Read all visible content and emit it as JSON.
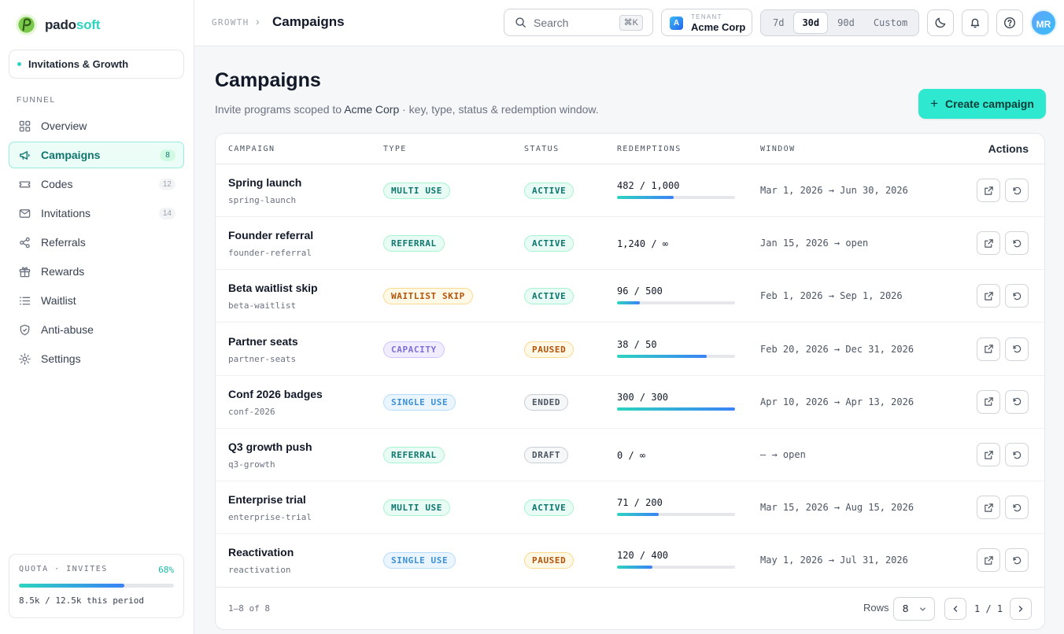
{
  "brand": {
    "name_part1": "pado",
    "name_part2": "soft"
  },
  "workspace": {
    "name": "Invitations & Growth"
  },
  "sidebar": {
    "section_label": "FUNNEL",
    "items": [
      {
        "label": "Overview",
        "icon": "grid-icon",
        "count": ""
      },
      {
        "label": "Campaigns",
        "icon": "megaphone-icon",
        "count": "8",
        "active": true
      },
      {
        "label": "Codes",
        "icon": "ticket-icon",
        "count": "12"
      },
      {
        "label": "Invitations",
        "icon": "mail-icon",
        "count": "14"
      },
      {
        "label": "Referrals",
        "icon": "share-icon",
        "count": ""
      },
      {
        "label": "Rewards",
        "icon": "gift-icon",
        "count": ""
      },
      {
        "label": "Waitlist",
        "icon": "list-icon",
        "count": ""
      },
      {
        "label": "Anti-abuse",
        "icon": "shield-icon",
        "count": ""
      },
      {
        "label": "Settings",
        "icon": "gear-icon",
        "count": ""
      }
    ],
    "quota": {
      "label": "QUOTA · INVITES",
      "percent_label": "68%",
      "fill_fraction": 0.68,
      "text": "8.5k / 12.5k this period"
    }
  },
  "header": {
    "breadcrumb_parent": "GROWTH",
    "breadcrumb_current": "Campaigns",
    "search_placeholder": "Search",
    "search_shortcut": "⌘K",
    "tenant_label": "TENANT",
    "tenant_initial": "A",
    "tenant_name": "Acme Corp",
    "ranges": [
      "7d",
      "30d",
      "90d",
      "Custom"
    ],
    "active_range": "30d",
    "user_initials": "MR"
  },
  "main": {
    "title": "Campaigns",
    "subtitle_prefix": "Invite programs scoped to ",
    "subtitle_tenant": "Acme Corp",
    "subtitle_suffix": " · key, type, status & redemption window.",
    "create_label": "Create campaign"
  },
  "table": {
    "columns": {
      "campaign": "CAMPAIGN",
      "type": "TYPE",
      "status": "STATUS",
      "redemptions": "REDEMPTIONS",
      "window": "WINDOW",
      "actions": "Actions"
    },
    "rows": [
      {
        "name": "Spring launch",
        "key": "spring-launch",
        "type": "MULTI USE",
        "type_style": "teal",
        "status": "ACTIVE",
        "status_style": "teal",
        "redemptions": "482 / 1,000",
        "fill": 0.482,
        "window": "Mar 1, 2026 → Jun 30, 2026"
      },
      {
        "name": "Founder referral",
        "key": "founder-referral",
        "type": "REFERRAL",
        "type_style": "teal",
        "status": "ACTIVE",
        "status_style": "teal",
        "redemptions": "1,240 / ∞",
        "fill": null,
        "window": "Jan 15, 2026 → open"
      },
      {
        "name": "Beta waitlist skip",
        "key": "beta-waitlist",
        "type": "WAITLIST SKIP",
        "type_style": "amber",
        "status": "ACTIVE",
        "status_style": "teal",
        "redemptions": "96 / 500",
        "fill": 0.192,
        "window": "Feb 1, 2026 → Sep 1, 2026"
      },
      {
        "name": "Partner seats",
        "key": "partner-seats",
        "type": "CAPACITY",
        "type_style": "violet",
        "status": "PAUSED",
        "status_style": "amber",
        "redemptions": "38 / 50",
        "fill": 0.76,
        "window": "Feb 20, 2026 → Dec 31, 2026"
      },
      {
        "name": "Conf 2026 badges",
        "key": "conf-2026",
        "type": "SINGLE USE",
        "type_style": "blue",
        "status": "ENDED",
        "status_style": "gray",
        "redemptions": "300 / 300",
        "fill": 1.0,
        "window": "Apr 10, 2026 → Apr 13, 2026"
      },
      {
        "name": "Q3 growth push",
        "key": "q3-growth",
        "type": "REFERRAL",
        "type_style": "teal",
        "status": "DRAFT",
        "status_style": "gray",
        "redemptions": "0 / ∞",
        "fill": null,
        "window": "— → open"
      },
      {
        "name": "Enterprise trial",
        "key": "enterprise-trial",
        "type": "MULTI USE",
        "type_style": "teal",
        "status": "ACTIVE",
        "status_style": "teal",
        "redemptions": "71 / 200",
        "fill": 0.355,
        "window": "Mar 15, 2026 → Aug 15, 2026"
      },
      {
        "name": "Reactivation",
        "key": "reactivation",
        "type": "SINGLE USE",
        "type_style": "blue",
        "status": "PAUSED",
        "status_style": "amber",
        "redemptions": "120 / 400",
        "fill": 0.3,
        "window": "May 1, 2026 → Jul 31, 2026"
      }
    ],
    "footer": {
      "count": "1–8 of 8",
      "rows_label": "Rows",
      "rows_value": "8",
      "page": "1 / 1"
    }
  }
}
